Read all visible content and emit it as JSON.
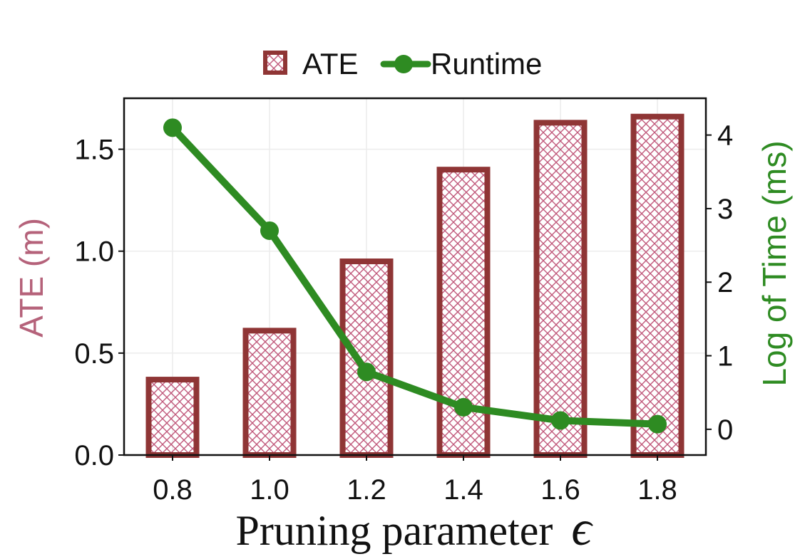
{
  "chart_data": {
    "type": "bar",
    "title": "",
    "categories": [
      "0.8",
      "1.0",
      "1.2",
      "1.4",
      "1.6",
      "1.8"
    ],
    "xlabel": "Pruning parameter",
    "xlabel_symbol": "ϵ",
    "ylabel_left": "ATE (m)",
    "ylabel_right": "Log of Time (ms)",
    "ylim_left": [
      0,
      1.75
    ],
    "ylim_right": [
      -0.35,
      4.5
    ],
    "yticks_left": [
      "0.0",
      "0.5",
      "1.0",
      "1.5"
    ],
    "yticks_left_values": [
      0,
      0.5,
      1.0,
      1.5
    ],
    "yticks_right": [
      "0",
      "1",
      "2",
      "3",
      "4"
    ],
    "yticks_right_values": [
      0,
      1,
      2,
      3,
      4
    ],
    "grid": true,
    "legend_position": "top-center",
    "legend": [
      {
        "label": "ATE",
        "marker": "hatched-square"
      },
      {
        "label": "Runtime",
        "marker": "line-circle"
      }
    ],
    "series": [
      {
        "name": "ATE",
        "kind": "bar",
        "axis": "left",
        "values": [
          0.37,
          0.61,
          0.95,
          1.4,
          1.63,
          1.66
        ]
      },
      {
        "name": "Runtime",
        "kind": "line",
        "axis": "right",
        "values": [
          4.1,
          2.7,
          0.78,
          0.3,
          0.12,
          0.07
        ]
      }
    ],
    "colors": {
      "bar_edge": "#8f3535",
      "bar_hatch": "#c0587a",
      "line": "#2e8b22",
      "left_axis_title": "#b5627a",
      "right_axis_title": "#2e8b22"
    }
  }
}
